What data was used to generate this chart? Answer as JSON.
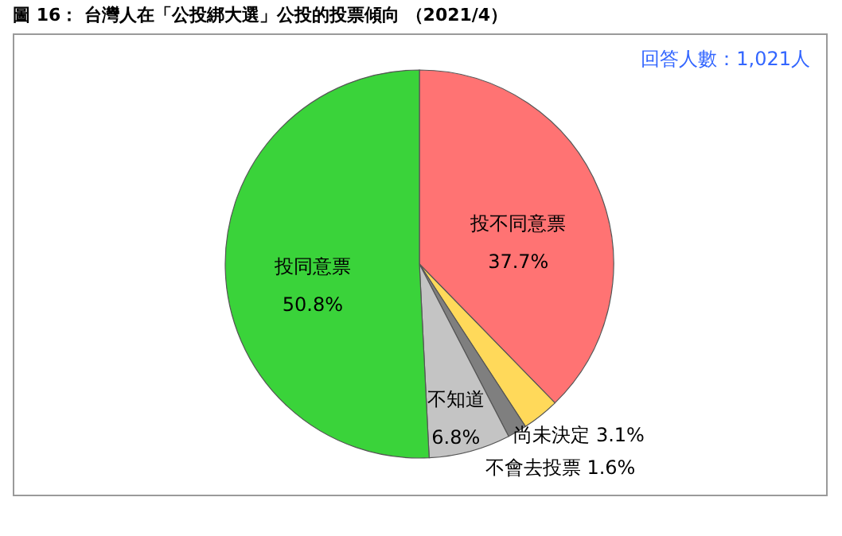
{
  "chart_data": {
    "type": "pie",
    "title": "圖 16： 台灣人在「公投綁大選」公投的投票傾向 （2021/4）",
    "annotations": [
      "回答人數：1,021人"
    ],
    "categories": [
      "投不同意票",
      "尚未決定",
      "不會去投票",
      "不知道",
      "投同意票"
    ],
    "values": [
      37.7,
      3.1,
      1.6,
      6.8,
      50.8
    ],
    "value_labels": [
      "37.7%",
      "3.1%",
      "1.6%",
      "6.8%",
      "50.8%"
    ],
    "colors": [
      "#ff7373",
      "#ffd95a",
      "#7f7f7f",
      "#c4c4c4",
      "#3ad33a"
    ],
    "legend": false
  }
}
